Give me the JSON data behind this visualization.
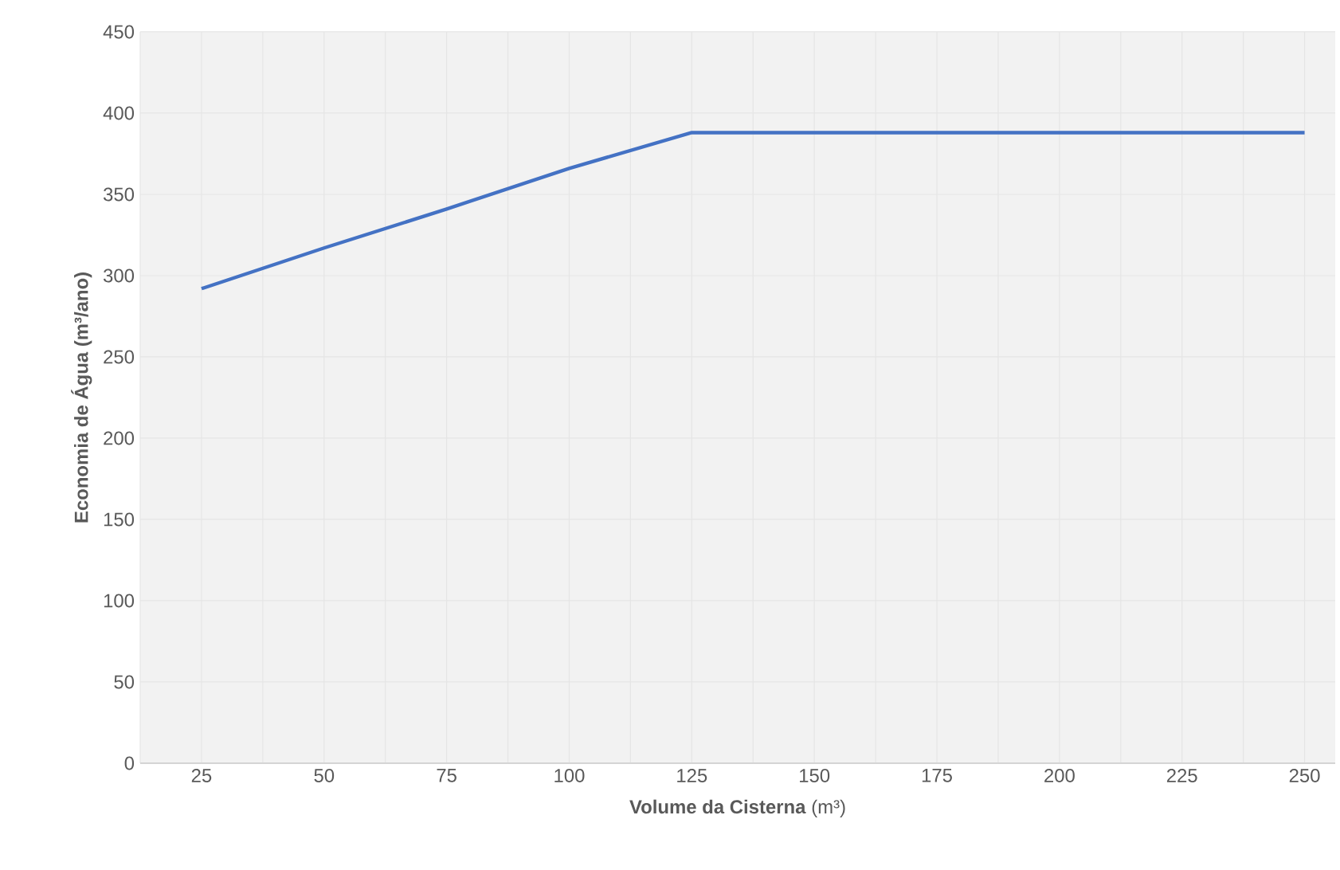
{
  "chart_data": {
    "type": "line",
    "xlabel": "**Volume da Cisterna** (m³)",
    "ylabel": "Economia de Água (m³/ano)",
    "categories": [
      "25",
      "50",
      "75",
      "100",
      "125",
      "150",
      "175",
      "200",
      "225",
      "250"
    ],
    "series": [
      {
        "color": "#4472c4",
        "values": [
          292,
          317,
          341,
          366,
          388,
          388,
          388,
          388,
          388,
          388
        ]
      }
    ],
    "ylim": [
      0,
      450
    ],
    "yticks": [
      0,
      50,
      100,
      150,
      200,
      250,
      300,
      350,
      400,
      450
    ],
    "grid": true,
    "marker": "none",
    "line_style": "solid"
  }
}
